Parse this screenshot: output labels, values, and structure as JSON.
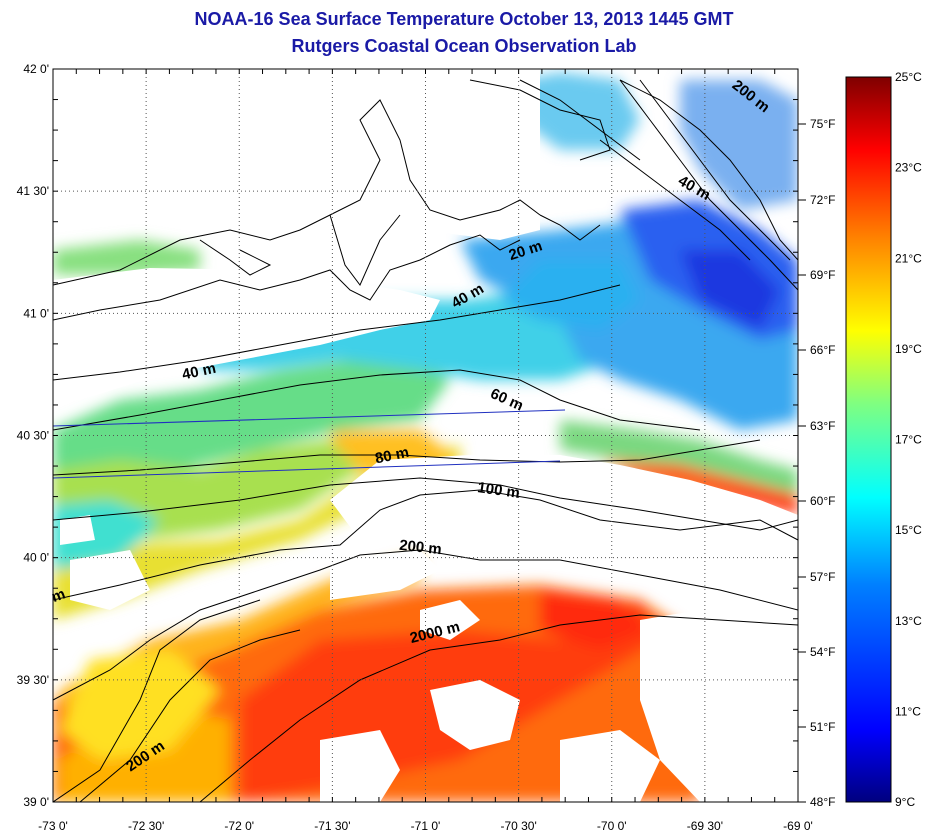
{
  "header": {
    "title": "NOAA-16 Sea Surface Temperature October 13, 2013 1445 GMT",
    "subtitle": "Rutgers Coastal Ocean Observation Lab"
  },
  "map": {
    "lat_ticks": [
      "42 0'",
      "41 30'",
      "41 0'",
      "40 30'",
      "40 0'",
      "39 30'",
      "39 0'"
    ],
    "lon_ticks": [
      "-73 0'",
      "-72 30'",
      "-72 0'",
      "-71 30'",
      "-71 0'",
      "-70 30'",
      "-70 0'",
      "-69 30'",
      "-69 0'"
    ],
    "fahrenheit_ticks": [
      "75°F",
      "72°F",
      "69°F",
      "66°F",
      "63°F",
      "60°F",
      "57°F",
      "54°F",
      "51°F",
      "48°F"
    ],
    "contour_labels": [
      "200 m",
      "40 m",
      "20 m",
      "40 m",
      "40 m",
      "60 m",
      "80 m",
      "100 m",
      "200 m",
      "2000 m",
      "200 m",
      "m"
    ],
    "lat_range": [
      39,
      42
    ],
    "lon_range": [
      -73,
      -69
    ]
  },
  "colorbar": {
    "celsius_ticks": [
      "25°C",
      "23°C",
      "21°C",
      "19°C",
      "17°C",
      "15°C",
      "13°C",
      "11°C",
      "9°C"
    ],
    "range_c": [
      9,
      25
    ],
    "colors": [
      "#00007f",
      "#0000ff",
      "#0080ff",
      "#00ffff",
      "#80ff80",
      "#ffff00",
      "#ff8000",
      "#ff0000",
      "#7f0000"
    ]
  }
}
